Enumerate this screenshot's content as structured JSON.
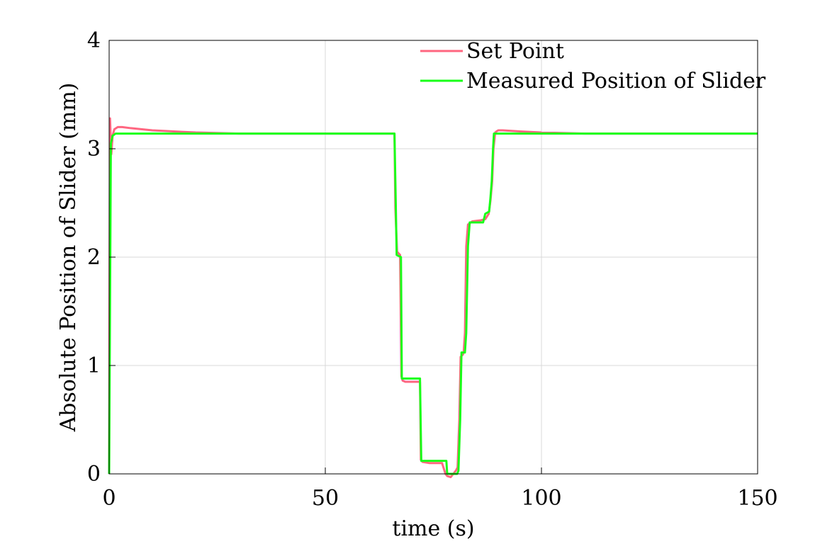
{
  "chart_data": {
    "type": "line",
    "title": "",
    "xlabel": "time (s)",
    "ylabel": "Absolute Position of Slider (mm)",
    "xlim": [
      0,
      150
    ],
    "ylim": [
      0,
      4
    ],
    "xticks": [
      0,
      50,
      100,
      150
    ],
    "yticks": [
      0,
      1,
      2,
      3,
      4
    ],
    "grid": true,
    "legend_position": "top-right",
    "series": [
      {
        "name": "Set Point",
        "color": "#ff6680",
        "x": [
          0,
          0.2,
          0.5,
          0.8,
          1.2,
          2,
          3,
          5,
          10,
          20,
          30,
          40,
          50,
          60,
          66,
          66.2,
          66.6,
          67.3,
          67.6,
          67.9,
          68.5,
          70,
          71.9,
          72.1,
          72.5,
          74,
          77,
          77.8,
          78.2,
          79,
          80.2,
          80.6,
          81,
          81.3,
          81.8,
          82,
          82.3,
          82.6,
          83,
          84,
          86,
          87,
          87.8,
          88.2,
          88.6,
          88.9,
          89.3,
          89.6,
          90,
          91,
          95,
          100,
          110,
          120,
          150
        ],
        "y": [
          0,
          3.28,
          2.95,
          3.12,
          3.18,
          3.2,
          3.2,
          3.19,
          3.17,
          3.15,
          3.14,
          3.14,
          3.14,
          3.14,
          3.14,
          2.45,
          2.05,
          2.02,
          0.9,
          0.86,
          0.85,
          0.85,
          0.85,
          0.13,
          0.11,
          0.1,
          0.1,
          0,
          -0.02,
          -0.03,
          0.03,
          0.06,
          0.5,
          1.08,
          1.1,
          1.12,
          1.3,
          2.1,
          2.3,
          2.33,
          2.34,
          2.35,
          2.4,
          2.52,
          2.7,
          3.0,
          3.15,
          3.16,
          3.17,
          3.17,
          3.16,
          3.15,
          3.14,
          3.14,
          3.14
        ]
      },
      {
        "name": "Measured Position of Slider",
        "color": "#19ff19",
        "x": [
          0,
          0.4,
          0.8,
          1.5,
          3,
          10,
          30,
          50,
          66,
          66.3,
          66.5,
          67.5,
          67.7,
          71.9,
          72.2,
          78,
          78.2,
          80.5,
          80.8,
          81.2,
          81.5,
          82.3,
          82.6,
          83,
          83.4,
          86.5,
          87,
          87.9,
          88.2,
          88.5,
          88.8,
          89,
          89.4,
          90,
          100,
          120,
          150
        ],
        "y": [
          0,
          3.05,
          3.12,
          3.14,
          3.14,
          3.14,
          3.14,
          3.14,
          3.14,
          2.5,
          2.02,
          2.0,
          0.88,
          0.88,
          0.12,
          0.12,
          0,
          0,
          0.03,
          0.5,
          1.12,
          1.12,
          1.3,
          2.1,
          2.32,
          2.32,
          2.4,
          2.42,
          2.55,
          2.7,
          3.0,
          3.14,
          3.14,
          3.14,
          3.14,
          3.14,
          3.14
        ]
      }
    ]
  }
}
